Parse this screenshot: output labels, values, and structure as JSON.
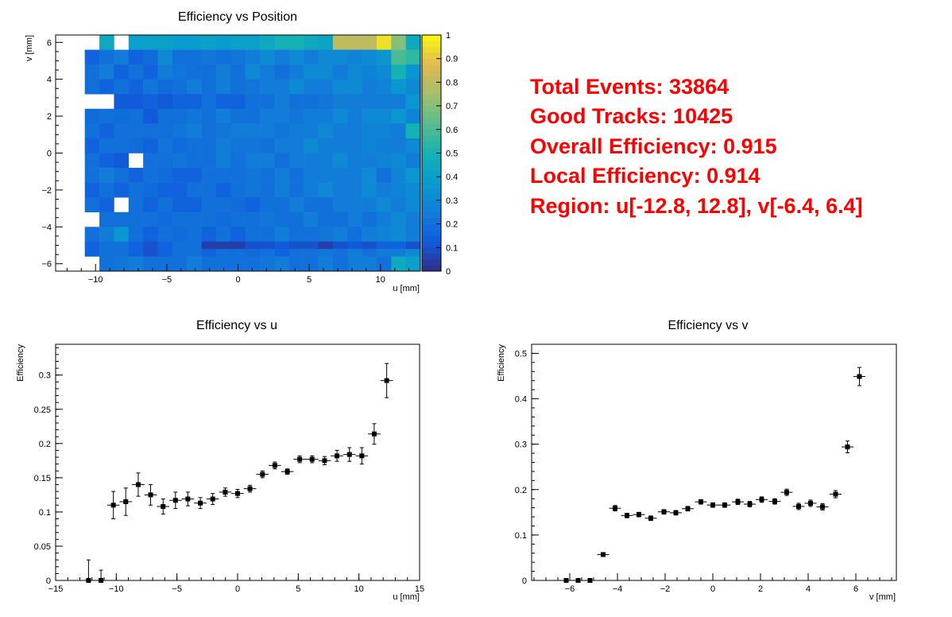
{
  "stats": {
    "total_events": "Total Events: 33864",
    "good_tracks": "Good Tracks: 10425",
    "overall_eff": "Overall Efficiency: 0.915",
    "local_eff": "Local Efficiency: 0.914",
    "region": "Region: u[-12.8, 12.8], v[-6.4, 6.4]"
  },
  "chart_data": [
    {
      "type": "heatmap",
      "title": "Efficiency vs Position",
      "xlabel": "u [mm]",
      "ylabel": "v [mm]",
      "xlim": [
        -12.8,
        12.8
      ],
      "ylim": [
        -6.4,
        6.4
      ],
      "xticks": [
        "−10",
        "−5",
        "0",
        "5",
        "10"
      ],
      "yticks": [
        "6",
        "4",
        "2",
        "0",
        "−2",
        "−4",
        "−6"
      ],
      "zlim": [
        0,
        1
      ],
      "zticks": [
        "0",
        "0.1",
        "0.2",
        "0.3",
        "0.4",
        "0.5",
        "0.6",
        "0.7",
        "0.8",
        "0.9",
        "1"
      ],
      "grid": {
        "x_bins": 25,
        "y_bins": 16,
        "u_min": -12.8,
        "bin_width_u": 1.024,
        "v_min": -6.4,
        "bin_width_v": 0.8
      },
      "values_rows_top_to_bottom": [
        [
          null,
          null,
          null,
          0.45,
          null,
          0.4,
          0.4,
          0.4,
          0.38,
          0.38,
          0.4,
          0.38,
          0.4,
          0.4,
          0.45,
          0.5,
          0.5,
          0.45,
          0.42,
          0.8,
          0.8,
          0.8,
          0.95,
          0.7,
          0.45
        ],
        [
          null,
          null,
          0.15,
          0.2,
          0.25,
          0.15,
          0.18,
          0.3,
          0.2,
          0.2,
          0.22,
          0.2,
          0.22,
          0.25,
          0.3,
          0.25,
          0.3,
          0.25,
          0.3,
          0.3,
          0.28,
          0.3,
          0.35,
          0.6,
          0.55
        ],
        [
          null,
          null,
          0.2,
          0.25,
          0.15,
          0.2,
          0.15,
          0.25,
          0.22,
          0.2,
          0.2,
          0.25,
          0.2,
          0.3,
          0.25,
          0.2,
          0.25,
          0.3,
          0.3,
          0.25,
          0.3,
          0.28,
          0.3,
          0.5,
          0.35
        ],
        [
          null,
          null,
          0.2,
          0.15,
          0.2,
          0.15,
          0.22,
          0.18,
          0.2,
          0.25,
          0.2,
          0.25,
          0.2,
          0.22,
          0.25,
          0.25,
          0.3,
          0.25,
          0.25,
          0.3,
          0.3,
          0.25,
          0.28,
          0.35,
          0.3
        ],
        [
          null,
          null,
          null,
          null,
          0.12,
          0.12,
          0.15,
          0.12,
          0.15,
          0.15,
          0.2,
          0.15,
          0.15,
          0.2,
          0.2,
          0.25,
          0.2,
          0.2,
          0.22,
          0.25,
          0.25,
          0.25,
          0.25,
          0.25,
          0.35
        ],
        [
          null,
          null,
          0.18,
          0.2,
          0.18,
          0.2,
          0.12,
          0.2,
          0.2,
          0.22,
          0.2,
          0.25,
          0.2,
          0.2,
          0.25,
          0.25,
          0.22,
          0.25,
          0.25,
          0.3,
          0.25,
          0.3,
          0.3,
          0.35,
          0.28
        ],
        [
          null,
          null,
          0.2,
          0.15,
          0.2,
          0.2,
          0.2,
          0.2,
          0.22,
          0.25,
          0.2,
          0.22,
          0.25,
          0.25,
          0.25,
          0.22,
          0.25,
          0.25,
          0.3,
          0.25,
          0.25,
          0.28,
          0.28,
          0.25,
          0.5
        ],
        [
          null,
          null,
          0.15,
          0.2,
          0.2,
          0.18,
          0.15,
          0.22,
          0.18,
          0.2,
          0.2,
          0.25,
          0.22,
          0.22,
          0.2,
          0.25,
          0.25,
          0.3,
          0.25,
          0.25,
          0.25,
          0.28,
          0.25,
          0.25,
          0.3
        ],
        [
          null,
          null,
          0.2,
          0.15,
          0.12,
          null,
          0.2,
          0.2,
          0.22,
          0.2,
          0.2,
          0.25,
          0.2,
          0.25,
          0.25,
          0.2,
          0.25,
          0.25,
          0.25,
          0.3,
          0.25,
          0.25,
          0.28,
          0.3,
          0.25
        ],
        [
          null,
          null,
          0.2,
          0.25,
          0.2,
          0.15,
          0.2,
          0.18,
          0.15,
          0.15,
          0.2,
          0.2,
          0.2,
          0.22,
          0.2,
          0.25,
          0.2,
          0.25,
          0.25,
          0.25,
          0.25,
          0.3,
          0.2,
          0.28,
          0.35
        ],
        [
          null,
          null,
          0.15,
          0.2,
          0.15,
          0.2,
          0.18,
          0.15,
          0.15,
          0.2,
          0.2,
          0.15,
          0.2,
          0.22,
          0.2,
          0.25,
          0.2,
          0.25,
          0.3,
          0.25,
          0.25,
          0.3,
          0.25,
          0.28,
          0.3
        ],
        [
          null,
          null,
          0.2,
          0.15,
          null,
          0.2,
          0.15,
          0.2,
          0.15,
          0.15,
          0.2,
          0.2,
          0.18,
          0.15,
          0.2,
          0.2,
          0.25,
          0.2,
          0.2,
          0.25,
          0.25,
          0.25,
          0.3,
          0.25,
          0.3
        ],
        [
          null,
          null,
          null,
          0.2,
          0.2,
          0.2,
          0.2,
          0.18,
          0.2,
          0.2,
          0.2,
          0.18,
          0.2,
          0.2,
          0.22,
          0.2,
          0.2,
          0.25,
          0.2,
          0.2,
          0.25,
          0.2,
          0.25,
          0.3,
          0.25
        ],
        [
          null,
          null,
          0.2,
          0.25,
          0.35,
          0.2,
          0.15,
          0.2,
          0.18,
          0.2,
          0.15,
          0.2,
          0.15,
          0.2,
          0.2,
          0.25,
          0.2,
          0.2,
          0.22,
          0.25,
          0.2,
          0.25,
          0.28,
          0.3,
          0.25
        ],
        [
          null,
          null,
          0.15,
          0.2,
          0.2,
          0.15,
          0.1,
          0.15,
          0.2,
          0.2,
          0.15,
          0.2,
          0.2,
          0.18,
          0.2,
          0.15,
          0.2,
          0.2,
          0.22,
          0.2,
          0.25,
          0.2,
          0.25,
          0.25,
          0.3
        ],
        [
          null,
          null,
          null,
          0.2,
          0.22,
          0.25,
          0.2,
          0.2,
          0.2,
          0.25,
          0.2,
          0.2,
          0.2,
          0.2,
          0.22,
          0.25,
          0.2,
          0.2,
          0.25,
          0.2,
          0.25,
          0.25,
          0.2,
          0.45,
          0.4
        ]
      ],
      "bottom_strip": {
        "u_from": -2.56,
        "u_to": 12.8,
        "v_from": -5.2,
        "v_to": -4.8,
        "values": [
          0.05,
          0.05,
          0.05,
          0.1,
          0.1,
          0.12,
          0.1,
          0.1,
          0.05,
          0.1,
          0.12,
          0.1,
          0.15,
          0.15,
          0.1
        ]
      }
    },
    {
      "type": "scatter",
      "title": "Efficiency vs u",
      "xlabel": "u [mm]",
      "ylabel": "Efficiency",
      "xlim": [
        -15,
        15
      ],
      "ylim": [
        0,
        0.345
      ],
      "xticks": [
        "−15",
        "−10",
        "−5",
        "0",
        "5",
        "10",
        "15"
      ],
      "yticks": [
        "0",
        "0.05",
        "0.1",
        "0.15",
        "0.2",
        "0.25",
        "0.3"
      ],
      "xerr": 0.512,
      "points": [
        {
          "x": -12.29,
          "y": 0.0,
          "err": 0.03
        },
        {
          "x": -11.26,
          "y": 0.0,
          "err": 0.015
        },
        {
          "x": -10.24,
          "y": 0.11,
          "err": 0.02
        },
        {
          "x": -9.22,
          "y": 0.115,
          "err": 0.02
        },
        {
          "x": -8.19,
          "y": 0.14,
          "err": 0.017
        },
        {
          "x": -7.17,
          "y": 0.125,
          "err": 0.015
        },
        {
          "x": -6.14,
          "y": 0.108,
          "err": 0.011
        },
        {
          "x": -5.12,
          "y": 0.117,
          "err": 0.012
        },
        {
          "x": -4.1,
          "y": 0.119,
          "err": 0.01
        },
        {
          "x": -3.07,
          "y": 0.113,
          "err": 0.008
        },
        {
          "x": -2.05,
          "y": 0.119,
          "err": 0.008
        },
        {
          "x": -1.02,
          "y": 0.129,
          "err": 0.006
        },
        {
          "x": 0.0,
          "y": 0.127,
          "err": 0.006
        },
        {
          "x": 1.02,
          "y": 0.134,
          "err": 0.005
        },
        {
          "x": 2.05,
          "y": 0.155,
          "err": 0.005
        },
        {
          "x": 3.07,
          "y": 0.168,
          "err": 0.005
        },
        {
          "x": 4.1,
          "y": 0.159,
          "err": 0.004
        },
        {
          "x": 5.12,
          "y": 0.177,
          "err": 0.005
        },
        {
          "x": 6.14,
          "y": 0.177,
          "err": 0.005
        },
        {
          "x": 7.17,
          "y": 0.175,
          "err": 0.006
        },
        {
          "x": 8.19,
          "y": 0.182,
          "err": 0.008
        },
        {
          "x": 9.22,
          "y": 0.184,
          "err": 0.01
        },
        {
          "x": 10.24,
          "y": 0.182,
          "err": 0.012
        },
        {
          "x": 11.26,
          "y": 0.214,
          "err": 0.015
        },
        {
          "x": 12.29,
          "y": 0.292,
          "err": 0.025
        }
      ]
    },
    {
      "type": "scatter",
      "title": "Efficiency vs v",
      "xlabel": "v [mm]",
      "ylabel": "Efficiency",
      "xlim": [
        -7.6,
        7.7
      ],
      "ylim": [
        0,
        0.52
      ],
      "xticks": [
        "−6",
        "−4",
        "−2",
        "0",
        "2",
        "4",
        "6"
      ],
      "yticks": [
        "0",
        "0.1",
        "0.2",
        "0.3",
        "0.4",
        "0.5"
      ],
      "xerr": 0.25,
      "points": [
        {
          "x": -6.15,
          "y": 0.0,
          "err": 0.0
        },
        {
          "x": -5.65,
          "y": 0.0,
          "err": 0.0
        },
        {
          "x": -5.15,
          "y": 0.0,
          "err": 0.0
        },
        {
          "x": -4.6,
          "y": 0.057,
          "err": 0.004
        },
        {
          "x": -4.1,
          "y": 0.159,
          "err": 0.006
        },
        {
          "x": -3.6,
          "y": 0.143,
          "err": 0.005
        },
        {
          "x": -3.1,
          "y": 0.145,
          "err": 0.005
        },
        {
          "x": -2.6,
          "y": 0.137,
          "err": 0.005
        },
        {
          "x": -2.05,
          "y": 0.151,
          "err": 0.005
        },
        {
          "x": -1.55,
          "y": 0.149,
          "err": 0.005
        },
        {
          "x": -1.05,
          "y": 0.158,
          "err": 0.005
        },
        {
          "x": -0.5,
          "y": 0.173,
          "err": 0.005
        },
        {
          "x": 0.0,
          "y": 0.166,
          "err": 0.005
        },
        {
          "x": 0.5,
          "y": 0.166,
          "err": 0.005
        },
        {
          "x": 1.05,
          "y": 0.173,
          "err": 0.006
        },
        {
          "x": 1.55,
          "y": 0.168,
          "err": 0.006
        },
        {
          "x": 2.05,
          "y": 0.178,
          "err": 0.006
        },
        {
          "x": 2.6,
          "y": 0.174,
          "err": 0.006
        },
        {
          "x": 3.1,
          "y": 0.194,
          "err": 0.007
        },
        {
          "x": 3.6,
          "y": 0.163,
          "err": 0.007
        },
        {
          "x": 4.1,
          "y": 0.17,
          "err": 0.007
        },
        {
          "x": 4.6,
          "y": 0.162,
          "err": 0.007
        },
        {
          "x": 5.15,
          "y": 0.19,
          "err": 0.008
        },
        {
          "x": 5.65,
          "y": 0.294,
          "err": 0.013
        },
        {
          "x": 6.15,
          "y": 0.449,
          "err": 0.02
        }
      ]
    }
  ]
}
